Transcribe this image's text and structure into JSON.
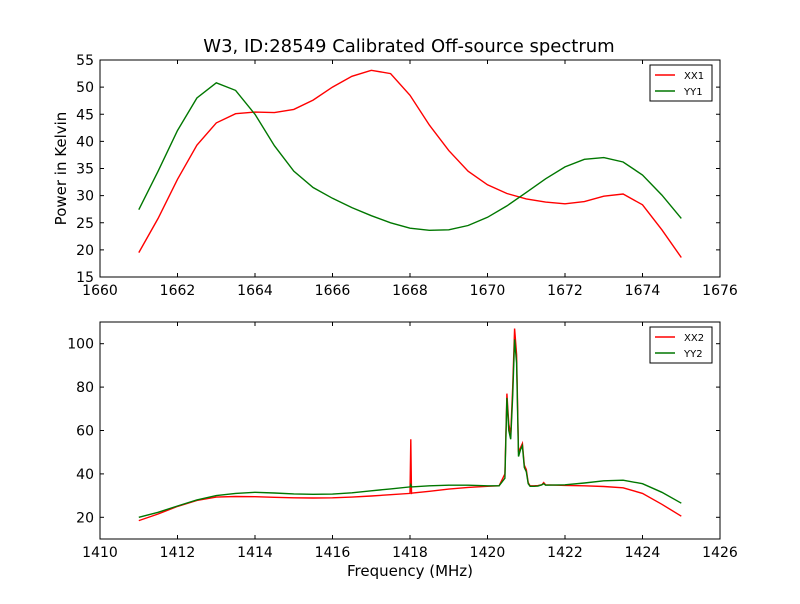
{
  "title": "W3, ID:28549 Calibrated Off-source spectrum",
  "chart_data": [
    {
      "type": "line",
      "ylabel": "Power in Kelvin",
      "xlabel": "",
      "xlim": [
        1660,
        1676
      ],
      "ylim": [
        15,
        55
      ],
      "xticks": [
        "1660",
        "1662",
        "1664",
        "1666",
        "1668",
        "1670",
        "1672",
        "1674",
        "1676"
      ],
      "yticks": [
        "15",
        "20",
        "25",
        "30",
        "35",
        "40",
        "45",
        "50",
        "55"
      ],
      "grid": false,
      "legend_position": "top-right",
      "series": [
        {
          "name": "XX1",
          "color": "#ff0000",
          "x": [
            1661.0,
            1661.5,
            1662.0,
            1662.5,
            1663.0,
            1663.5,
            1664.0,
            1664.5,
            1665.0,
            1665.5,
            1666.0,
            1666.5,
            1667.0,
            1667.5,
            1668.0,
            1668.5,
            1669.0,
            1669.5,
            1670.0,
            1670.5,
            1671.0,
            1671.5,
            1672.0,
            1672.5,
            1673.0,
            1673.5,
            1674.0,
            1674.5,
            1675.0
          ],
          "values": [
            19.5,
            25.8,
            33.0,
            39.3,
            43.4,
            45.1,
            45.4,
            45.3,
            45.9,
            47.6,
            50.0,
            52.0,
            53.1,
            52.5,
            48.5,
            43.0,
            38.3,
            34.5,
            32.0,
            30.4,
            29.4,
            28.8,
            28.5,
            28.9,
            29.9,
            30.3,
            28.3,
            23.7,
            18.6
          ]
        },
        {
          "name": "YY1",
          "color": "#007700",
          "x": [
            1661.0,
            1661.5,
            1662.0,
            1662.5,
            1663.0,
            1663.5,
            1664.0,
            1664.5,
            1665.0,
            1665.5,
            1666.0,
            1666.5,
            1667.0,
            1667.5,
            1668.0,
            1668.5,
            1669.0,
            1669.5,
            1670.0,
            1670.5,
            1671.0,
            1671.5,
            1672.0,
            1672.5,
            1673.0,
            1673.5,
            1674.0,
            1674.5,
            1675.0
          ],
          "values": [
            27.4,
            34.5,
            42.0,
            48.0,
            50.8,
            49.4,
            45.0,
            39.2,
            34.5,
            31.5,
            29.5,
            27.8,
            26.3,
            25.0,
            24.0,
            23.6,
            23.7,
            24.5,
            26.0,
            28.1,
            30.6,
            33.1,
            35.3,
            36.7,
            37.0,
            36.2,
            33.8,
            30.1,
            25.8
          ]
        }
      ]
    },
    {
      "type": "line",
      "ylabel": "",
      "xlabel": "Frequency (MHz)",
      "xlim": [
        1410,
        1426
      ],
      "ylim": [
        10,
        110
      ],
      "xticks": [
        "1410",
        "1412",
        "1414",
        "1416",
        "1418",
        "1420",
        "1422",
        "1424",
        "1426"
      ],
      "yticks": [
        "20",
        "40",
        "60",
        "80",
        "100"
      ],
      "grid": false,
      "legend_position": "top-right",
      "series": [
        {
          "name": "XX2",
          "color": "#ff0000",
          "x": [
            1411.0,
            1411.5,
            1412.0,
            1412.5,
            1413.0,
            1413.5,
            1414.0,
            1414.5,
            1415.0,
            1415.5,
            1416.0,
            1416.5,
            1417.0,
            1417.5,
            1418.0,
            1418.02,
            1418.04,
            1418.06,
            1418.5,
            1419.0,
            1419.5,
            1420.0,
            1420.3,
            1420.45,
            1420.5,
            1420.55,
            1420.6,
            1420.65,
            1420.7,
            1420.75,
            1420.8,
            1420.85,
            1420.9,
            1420.95,
            1421.0,
            1421.05,
            1421.1,
            1421.2,
            1421.3,
            1421.4,
            1421.45,
            1421.5,
            1422.0,
            1422.5,
            1423.0,
            1423.5,
            1424.0,
            1424.5,
            1425.0
          ],
          "values": [
            18.5,
            21.5,
            25.0,
            27.8,
            29.3,
            29.6,
            29.5,
            29.2,
            29.0,
            28.9,
            29.0,
            29.3,
            29.8,
            30.4,
            31.0,
            56.0,
            31.0,
            31.2,
            32.0,
            33.0,
            33.8,
            34.3,
            34.5,
            40.0,
            77.0,
            63.0,
            58.0,
            80.0,
            107.0,
            95.0,
            50.0,
            52.0,
            54.0,
            44.0,
            42.0,
            36.0,
            34.5,
            34.5,
            34.6,
            35.0,
            36.0,
            35.0,
            34.7,
            34.5,
            34.2,
            33.6,
            31.0,
            26.0,
            20.5
          ]
        },
        {
          "name": "YY2",
          "color": "#007700",
          "x": [
            1411.0,
            1411.5,
            1412.0,
            1412.5,
            1413.0,
            1413.5,
            1414.0,
            1414.5,
            1415.0,
            1415.5,
            1416.0,
            1416.5,
            1417.0,
            1417.5,
            1418.0,
            1418.02,
            1418.04,
            1418.5,
            1419.0,
            1419.5,
            1420.0,
            1420.3,
            1420.45,
            1420.5,
            1420.55,
            1420.6,
            1420.65,
            1420.7,
            1420.75,
            1420.8,
            1420.85,
            1420.9,
            1420.95,
            1421.0,
            1421.05,
            1421.1,
            1421.2,
            1421.3,
            1421.4,
            1421.45,
            1421.5,
            1422.0,
            1422.5,
            1423.0,
            1423.5,
            1424.0,
            1424.5,
            1425.0
          ],
          "values": [
            20.0,
            22.3,
            25.2,
            28.0,
            30.0,
            31.0,
            31.5,
            31.2,
            30.8,
            30.6,
            30.7,
            31.3,
            32.2,
            33.1,
            34.0,
            35.0,
            34.0,
            34.5,
            34.8,
            34.8,
            34.5,
            34.5,
            38.0,
            75.0,
            60.0,
            56.0,
            76.0,
            102.0,
            91.0,
            48.0,
            51.0,
            53.0,
            43.0,
            41.0,
            35.5,
            34.3,
            34.3,
            34.4,
            35.0,
            35.5,
            34.8,
            35.0,
            35.8,
            36.8,
            37.1,
            35.5,
            31.5,
            26.5
          ]
        }
      ]
    }
  ]
}
